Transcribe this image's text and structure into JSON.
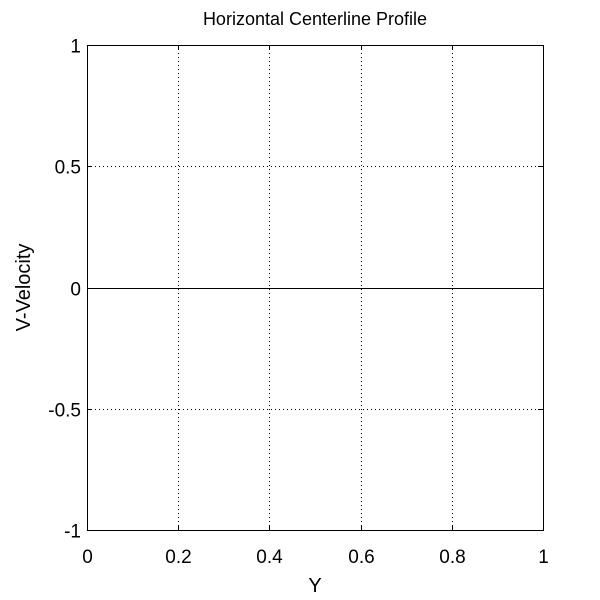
{
  "chart_data": {
    "type": "line",
    "title": "Horizontal Centerline Profile",
    "xlabel": "Y",
    "ylabel": "V-Velocity",
    "xlim": [
      0,
      1
    ],
    "ylim": [
      -1,
      1
    ],
    "xticks": [
      0,
      0.2,
      0.4,
      0.6,
      0.8,
      1
    ],
    "xtick_labels": [
      "0",
      "0.2",
      "0.4",
      "0.6",
      "0.8",
      "1"
    ],
    "yticks": [
      -1,
      -0.5,
      0,
      0.5,
      1
    ],
    "ytick_labels": [
      "-1",
      "-0.5",
      "0",
      "0.5",
      "1"
    ],
    "grid": true,
    "series": [
      {
        "x": [
          0,
          1
        ],
        "y": [
          0,
          0
        ],
        "color": "#000000"
      }
    ]
  }
}
